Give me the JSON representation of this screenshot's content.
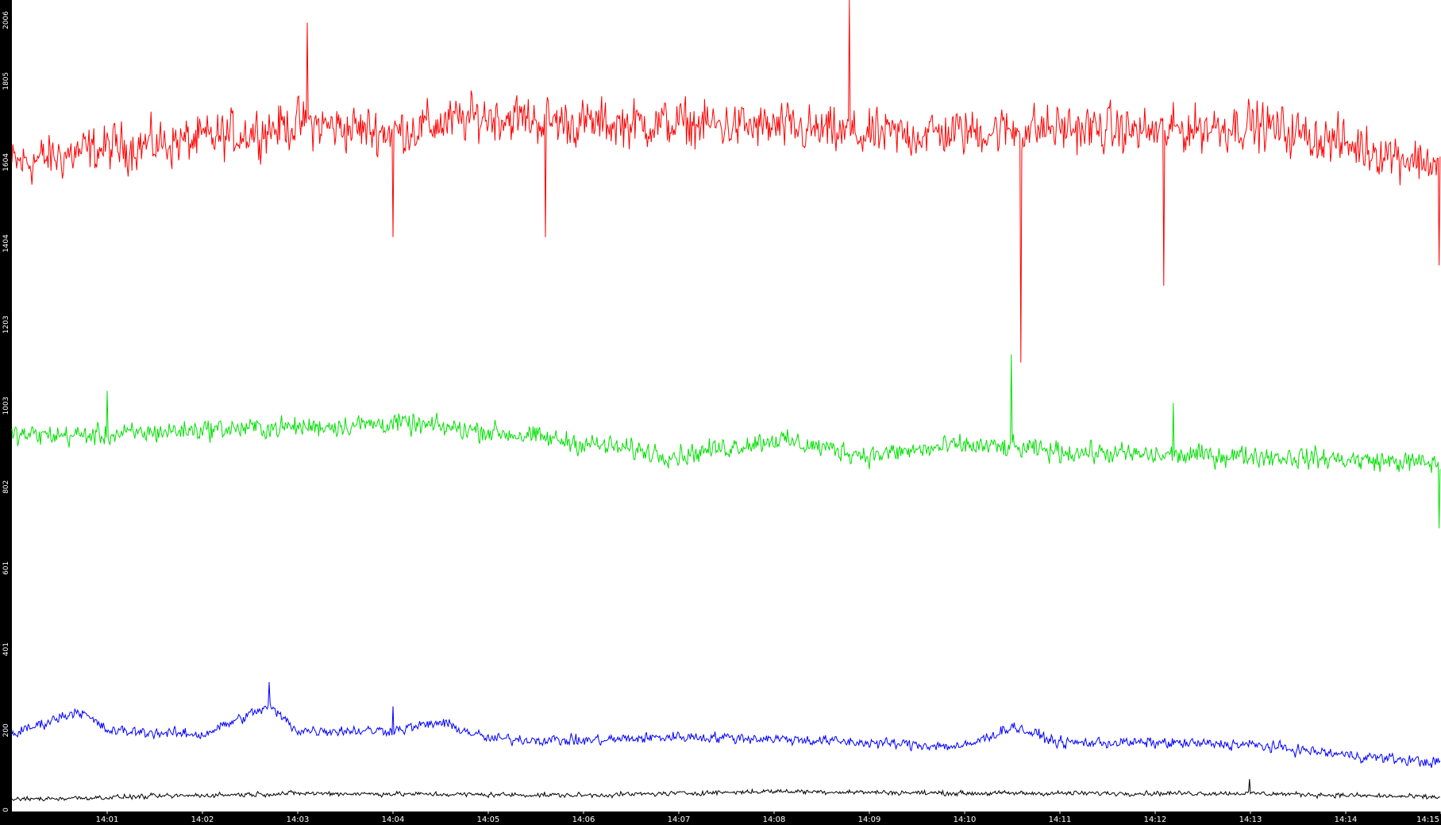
{
  "chart_data": {
    "type": "line",
    "title": "",
    "xlabel": "",
    "ylabel": "",
    "ylim": [
      0,
      2006
    ],
    "xlim_minutes": [
      0,
      15
    ],
    "y_ticks": [
      "0",
      "200",
      "401",
      "601",
      "802",
      "1003",
      "1203",
      "1404",
      "1604",
      "1805",
      "2006"
    ],
    "x_ticks": [
      "14:01",
      "14:02",
      "14:03",
      "14:04",
      "14:05",
      "14:06",
      "14:07",
      "14:08",
      "14:09",
      "14:10",
      "14:11",
      "14:12",
      "14:13",
      "14:14",
      "14:15"
    ],
    "x_tick_minutes": [
      1,
      2,
      3,
      4,
      5,
      6,
      7,
      8,
      9,
      10,
      11,
      12,
      13,
      14,
      15
    ],
    "grid": false,
    "legend": "none",
    "x_points_per_series": 1500,
    "series": [
      {
        "color": "#ff0000",
        "trend_x": [
          0,
          1,
          2,
          3,
          4,
          5,
          6,
          7,
          8,
          9,
          10,
          11,
          12,
          13,
          14,
          14.99
        ],
        "trend_y": [
          1600,
          1640,
          1660,
          1700,
          1680,
          1720,
          1700,
          1700,
          1690,
          1670,
          1680,
          1690,
          1680,
          1700,
          1650,
          1600
        ],
        "noise_amplitude": 80,
        "spikes": [
          [
            3.1,
            1950
          ],
          [
            4.0,
            1420
          ],
          [
            5.6,
            1420
          ],
          [
            8.8,
            2006
          ],
          [
            10.6,
            1110
          ],
          [
            12.1,
            1300
          ],
          [
            14.99,
            1350
          ]
        ]
      },
      {
        "color": "#00e000",
        "trend_x": [
          0,
          1,
          2,
          3,
          4,
          5,
          6,
          7,
          8,
          9,
          10,
          11,
          12,
          13,
          14,
          14.99
        ],
        "trend_y": [
          930,
          930,
          945,
          950,
          960,
          940,
          910,
          880,
          920,
          880,
          905,
          890,
          880,
          880,
          870,
          860
        ],
        "noise_amplitude": 35,
        "spikes": [
          [
            1.0,
            1040
          ],
          [
            10.5,
            1130
          ],
          [
            12.2,
            1010
          ],
          [
            14.99,
            700
          ]
        ]
      },
      {
        "color": "#0000ff",
        "trend_x": [
          0,
          0.7,
          1.0,
          2.0,
          2.7,
          3.0,
          4.0,
          4.5,
          5.0,
          6.0,
          7.0,
          8.0,
          9.0,
          10.0,
          10.5,
          11.0,
          12.0,
          13.0,
          14.0,
          14.99
        ],
        "trend_y": [
          190,
          250,
          200,
          190,
          260,
          200,
          200,
          220,
          180,
          175,
          185,
          180,
          170,
          160,
          210,
          170,
          170,
          165,
          140,
          120
        ],
        "noise_amplitude": 18,
        "spikes": [
          [
            2.7,
            320
          ],
          [
            4.0,
            260
          ]
        ]
      },
      {
        "color": "#000000",
        "trend_x": [
          0,
          3,
          6,
          8,
          10,
          12,
          13,
          14.99
        ],
        "trend_y": [
          30,
          45,
          40,
          50,
          45,
          45,
          45,
          35
        ],
        "noise_amplitude": 8,
        "spikes": [
          [
            13.0,
            80
          ]
        ]
      }
    ]
  }
}
